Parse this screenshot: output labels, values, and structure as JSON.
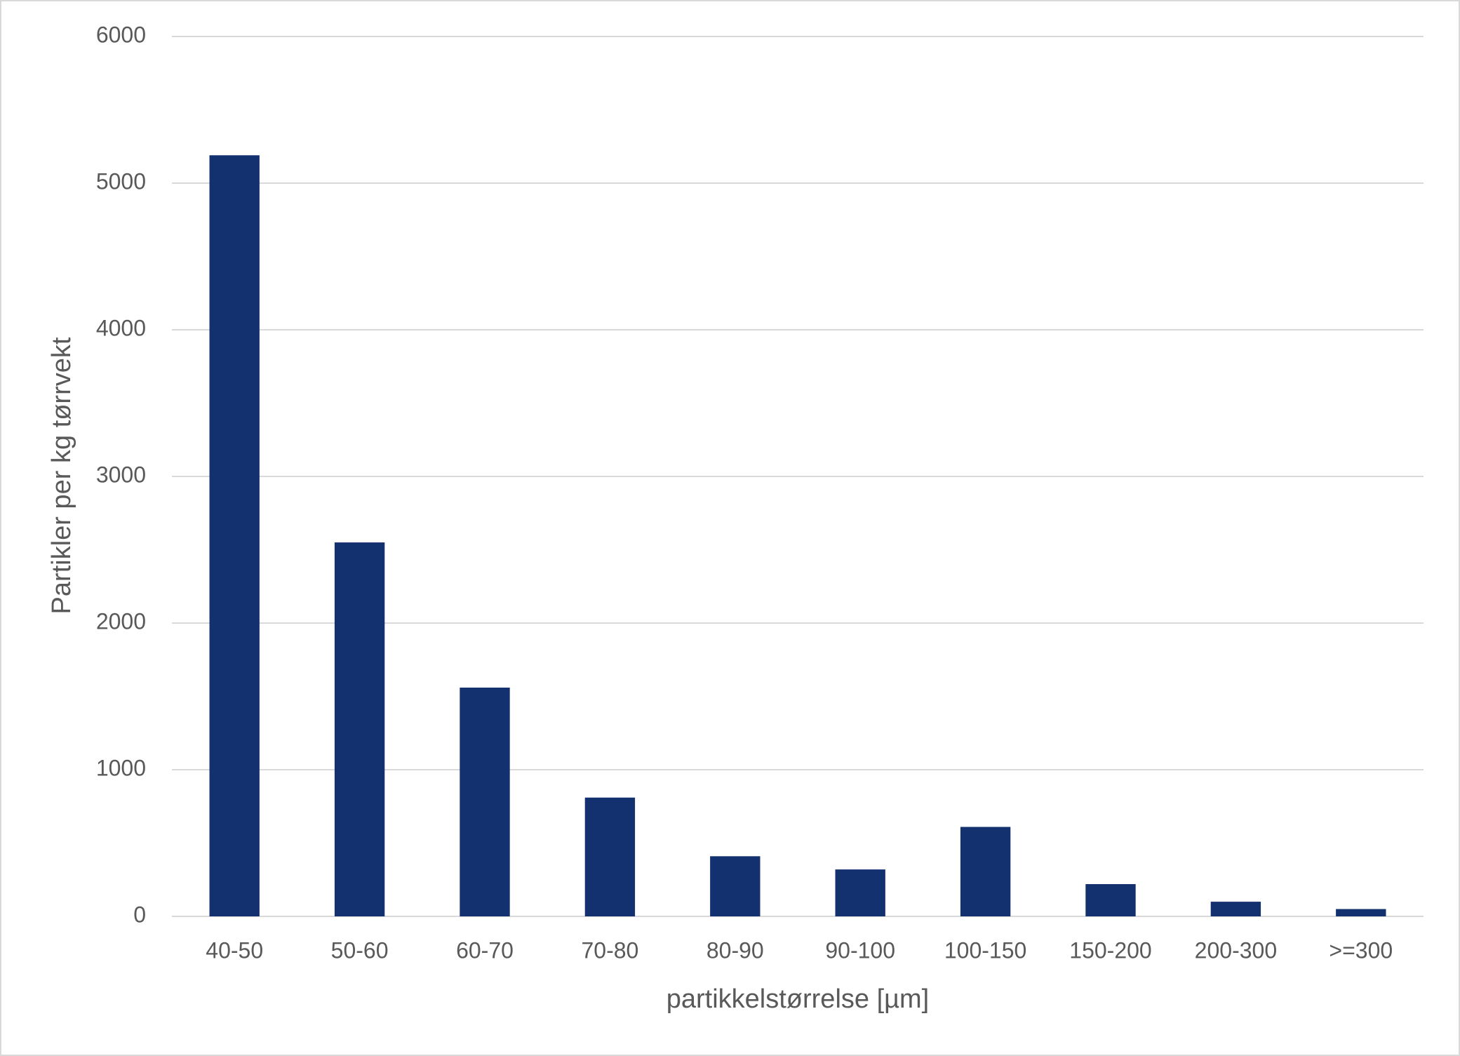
{
  "chart_data": {
    "type": "bar",
    "categories": [
      "40-50",
      "50-60",
      "60-70",
      "70-80",
      "80-90",
      "90-100",
      "100-150",
      "150-200",
      "200-300",
      ">=300"
    ],
    "values": [
      5190,
      2550,
      1560,
      810,
      410,
      320,
      610,
      220,
      100,
      50
    ],
    "color": "#14316f",
    "ylim": [
      0,
      6000
    ],
    "yticks": [
      0,
      1000,
      2000,
      3000,
      4000,
      5000,
      6000
    ],
    "grid": true,
    "x_label": "partikkelstørrelse [µm]",
    "y_label": "Partikler per kg tørrvekt"
  }
}
